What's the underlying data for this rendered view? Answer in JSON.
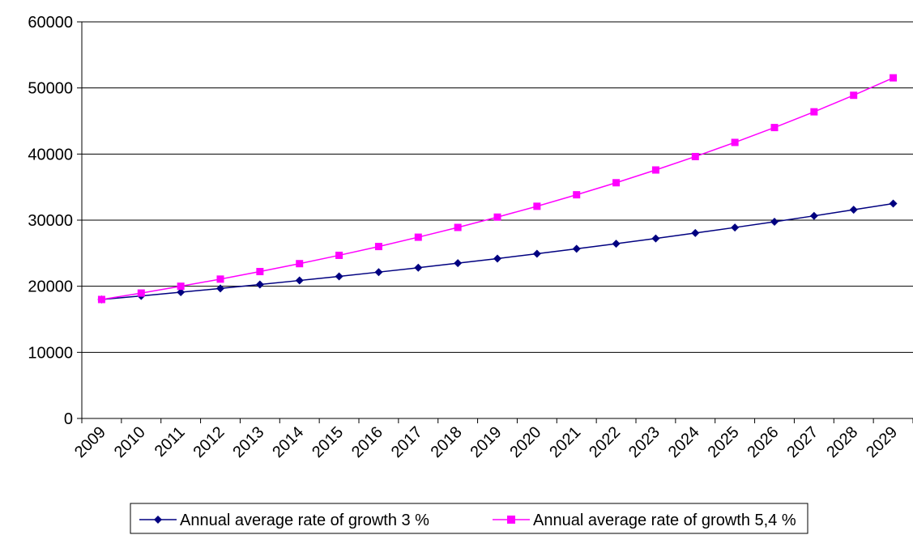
{
  "chart_data": {
    "type": "line",
    "title": "",
    "xlabel": "",
    "ylabel": "",
    "categories": [
      "2009",
      "2010",
      "2011",
      "2012",
      "2013",
      "2014",
      "2015",
      "2016",
      "2017",
      "2018",
      "2019",
      "2020",
      "2021",
      "2022",
      "2023",
      "2024",
      "2025",
      "2026",
      "2027",
      "2028",
      "2029"
    ],
    "ylim": [
      0,
      60000
    ],
    "yticks": [
      0,
      10000,
      20000,
      30000,
      40000,
      50000,
      60000
    ],
    "grid": "horizontal",
    "legend_position": "bottom",
    "series": [
      {
        "name": "Annual average rate of growth 3 %",
        "color": "#000080",
        "marker": "diamond",
        "values": [
          18000,
          18540,
          19100,
          19670,
          20260,
          20870,
          21490,
          22140,
          22800,
          23490,
          24190,
          24920,
          25670,
          26440,
          27230,
          28050,
          28890,
          29760,
          30650,
          31570,
          32510
        ]
      },
      {
        "name": "Annual average rate of growth 5,4 %",
        "color": "#ff00ff",
        "marker": "square",
        "values": [
          18000,
          18970,
          20000,
          21080,
          22220,
          23420,
          24680,
          26010,
          27420,
          28900,
          30460,
          32100,
          33840,
          35660,
          37590,
          39620,
          41760,
          44010,
          46390,
          48890,
          51530
        ]
      }
    ]
  }
}
